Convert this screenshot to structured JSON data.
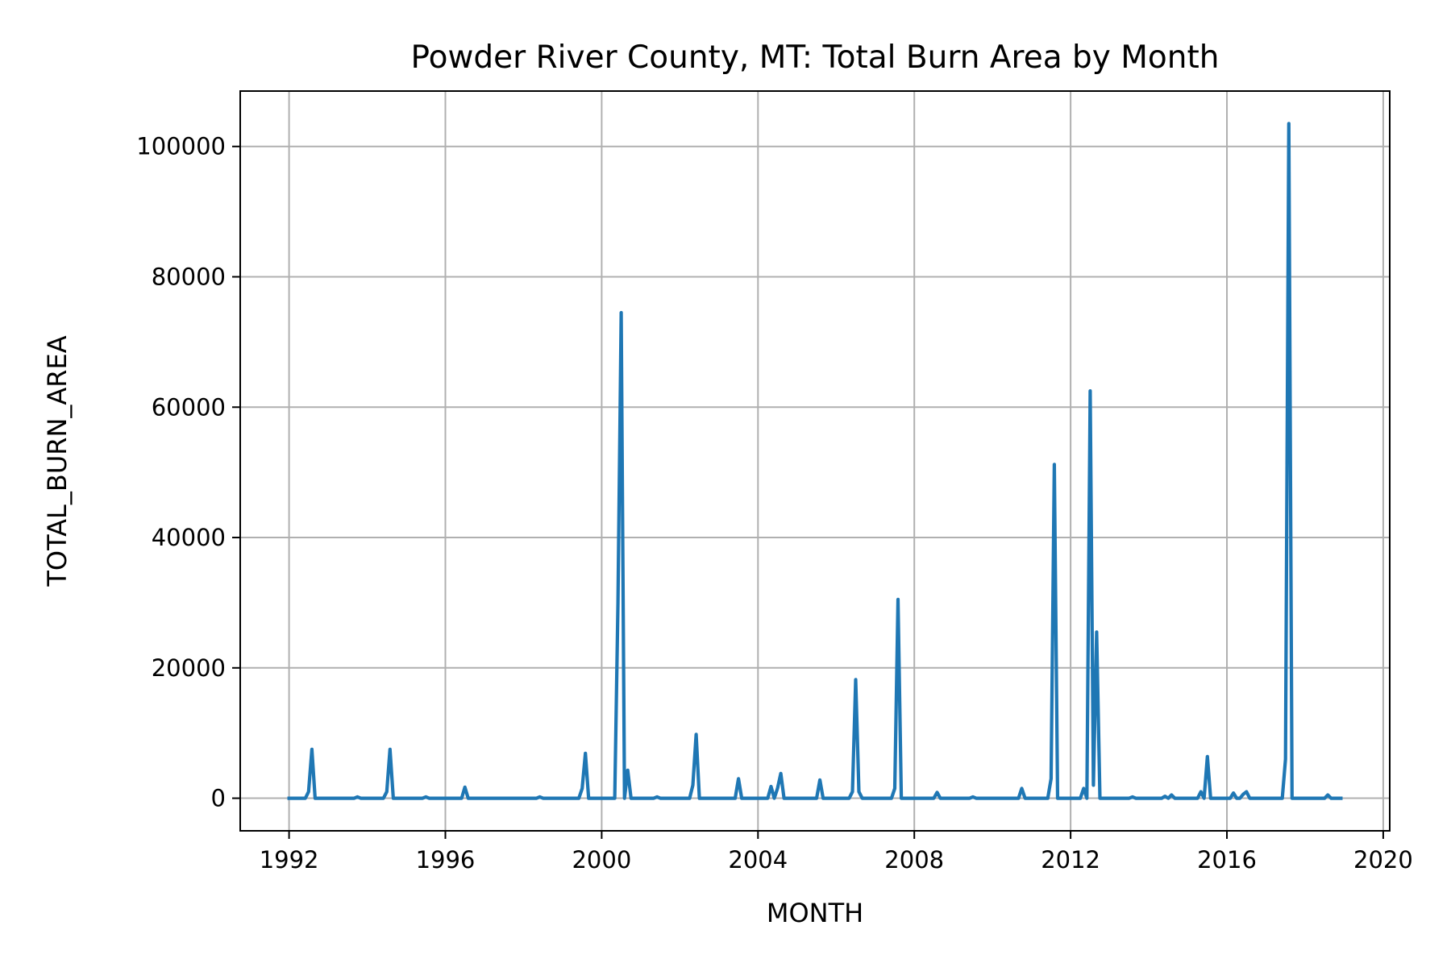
{
  "chart_data": {
    "type": "line",
    "title": "Powder River County, MT: Total Burn Area by Month",
    "xlabel": "MONTH",
    "ylabel": "TOTAL_BURN_AREA",
    "xlim": [
      "1990-10",
      "2020-03"
    ],
    "ylim": [
      -5000,
      108500
    ],
    "x_ticks": [
      "1992",
      "1996",
      "2000",
      "2004",
      "2008",
      "2012",
      "2016",
      "2020"
    ],
    "y_ticks": [
      "0",
      "20000",
      "40000",
      "60000",
      "80000",
      "100000"
    ],
    "grid": true,
    "legend": "none",
    "color": "#1f77b4",
    "series": [
      {
        "x": [
          "1992-01",
          "1992-06",
          "1992-07",
          "1992-08",
          "1992-09",
          "1992-10",
          "1993-10",
          "1994-06",
          "1994-07",
          "1994-08",
          "1994-09",
          "1994-10",
          "1995-07",
          "1996-06",
          "1996-07",
          "1996-08",
          "1996-09",
          "1998-06",
          "1999-06",
          "1999-07",
          "1999-08",
          "1999-09",
          "2000-05",
          "2000-06",
          "2000-07",
          "2000-08",
          "2000-09",
          "2000-10",
          "2001-06",
          "2002-04",
          "2002-05",
          "2002-06",
          "2002-07",
          "2003-06",
          "2003-07",
          "2003-08",
          "2004-04",
          "2004-05",
          "2004-06",
          "2004-07",
          "2004-08",
          "2004-09",
          "2005-06",
          "2005-07",
          "2005-08",
          "2005-09",
          "2006-05",
          "2006-06",
          "2006-07",
          "2006-08",
          "2007-06",
          "2007-07",
          "2007-08",
          "2008-07",
          "2008-08",
          "2008-09",
          "2009-07",
          "2010-09",
          "2010-10",
          "2010-11",
          "2011-06",
          "2011-07",
          "2011-08",
          "2012-03",
          "2012-04",
          "2012-05",
          "2012-06",
          "2012-07",
          "2012-08",
          "2012-09",
          "2012-10",
          "2013-08",
          "2014-06",
          "2014-08",
          "2015-03",
          "2015-04",
          "2015-05",
          "2015-06",
          "2015-07",
          "2016-02",
          "2016-03",
          "2016-05",
          "2016-06",
          "2016-07",
          "2017-05",
          "2017-06",
          "2017-07",
          "2017-08",
          "2017-09",
          "2018-07",
          "2018-08",
          "2018-09",
          "2018-12"
        ],
        "values": [
          0,
          0,
          1000,
          7500,
          0,
          0,
          200,
          0,
          1000,
          7500,
          0,
          0,
          200,
          0,
          1700,
          0,
          0,
          200,
          0,
          1500,
          6900,
          0,
          0,
          30000,
          74500,
          0,
          4300,
          0,
          200,
          0,
          2000,
          9800,
          0,
          0,
          3000,
          0,
          0,
          1800,
          0,
          1500,
          3800,
          0,
          0,
          0,
          2800,
          0,
          0,
          1000,
          18200,
          1000,
          0,
          1500,
          30500,
          0,
          900,
          0,
          200,
          0,
          1500,
          0,
          0,
          3000,
          51200,
          0,
          0,
          1500,
          0,
          62500,
          2000,
          25500,
          0,
          200,
          300,
          500,
          0,
          0,
          1000,
          0,
          6400,
          0,
          800,
          0,
          600,
          1000,
          0,
          0,
          6000,
          103500,
          0,
          0,
          500,
          0,
          0
        ]
      }
    ]
  }
}
